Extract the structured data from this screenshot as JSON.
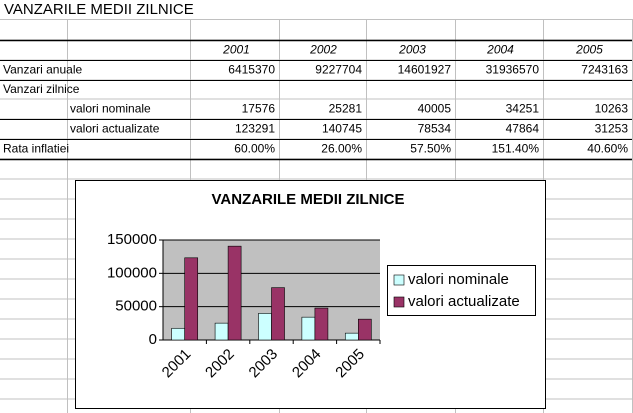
{
  "table": {
    "title": "VANZARILE MEDII ZILNICE",
    "years": [
      "2001",
      "2002",
      "2003",
      "2004",
      "2005"
    ],
    "rows": [
      {
        "label": "Vanzari anuale",
        "cells": [
          "6415370",
          "9227704",
          "14601927",
          "31936570",
          "7243163"
        ]
      },
      {
        "label": "Vanzari zilnice",
        "cells": []
      },
      {
        "label": "valori nominale",
        "cells": [
          "17576",
          "25281",
          "40005",
          "34251",
          "10263"
        ]
      },
      {
        "label": "valori actualizate",
        "cells": [
          "123291",
          "140745",
          "78534",
          "47864",
          "31253"
        ]
      },
      {
        "label": "Rata inflatiei",
        "cells": [
          "60.00%",
          "26.00%",
          "57.50%",
          "151.40%",
          "40.60%"
        ]
      }
    ]
  },
  "chart_data": {
    "type": "bar",
    "title": "VANZARILE MEDII ZILNICE",
    "categories": [
      "2001",
      "2002",
      "2003",
      "2004",
      "2005"
    ],
    "series": [
      {
        "name": "valori nominale",
        "color": "#ccffff",
        "values": [
          17576,
          25281,
          40005,
          34251,
          10263
        ]
      },
      {
        "name": "valori actualizate",
        "color": "#993366",
        "values": [
          123291,
          140745,
          78534,
          47864,
          31253
        ]
      }
    ],
    "ylim": [
      0,
      150000
    ],
    "yticks": [
      0,
      50000,
      100000,
      150000
    ],
    "grid": true,
    "legend": "right"
  }
}
